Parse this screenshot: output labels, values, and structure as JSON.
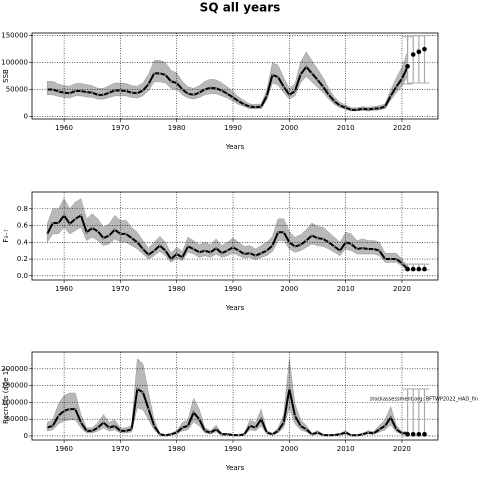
{
  "title": "SQ all years",
  "chart_data": [
    {
      "type": "line",
      "ylabel": "SSB",
      "xlabel": "Years",
      "x": [
        1957,
        1958,
        1959,
        1960,
        1961,
        1962,
        1963,
        1964,
        1965,
        1966,
        1967,
        1968,
        1969,
        1970,
        1971,
        1972,
        1973,
        1974,
        1975,
        1976,
        1977,
        1978,
        1979,
        1980,
        1981,
        1982,
        1983,
        1984,
        1985,
        1986,
        1987,
        1988,
        1989,
        1990,
        1991,
        1992,
        1993,
        1994,
        1995,
        1996,
        1997,
        1998,
        1999,
        2000,
        2001,
        2002,
        2003,
        2004,
        2005,
        2006,
        2007,
        2008,
        2009,
        2010,
        2011,
        2012,
        2013,
        2014,
        2015,
        2016,
        2017,
        2018,
        2019,
        2020,
        2021
      ],
      "values": [
        50000,
        50000,
        46000,
        44000,
        43000,
        47000,
        47000,
        45000,
        44000,
        40000,
        40000,
        44000,
        48000,
        48000,
        47000,
        44000,
        43000,
        48000,
        60000,
        80000,
        80000,
        77000,
        65000,
        62000,
        50000,
        42000,
        40000,
        44000,
        50000,
        53000,
        52000,
        48000,
        42000,
        35000,
        28000,
        22000,
        18000,
        17000,
        18000,
        38000,
        77000,
        73000,
        55000,
        40000,
        47000,
        78000,
        92000,
        80000,
        68000,
        55000,
        40000,
        28000,
        20000,
        16000,
        12000,
        12000,
        14000,
        13000,
        14000,
        15000,
        18000,
        38000,
        55000,
        70000,
        92000
      ],
      "lower": [
        40000,
        40000,
        37000,
        35000,
        34000,
        38000,
        38000,
        36000,
        35000,
        32000,
        32000,
        35000,
        38000,
        38000,
        38000,
        35000,
        34000,
        38000,
        48000,
        64000,
        64000,
        62000,
        52000,
        50000,
        40000,
        34000,
        32000,
        35000,
        40000,
        42000,
        42000,
        38000,
        34000,
        28000,
        22000,
        18000,
        14000,
        14000,
        14000,
        30000,
        62000,
        58000,
        44000,
        32000,
        38000,
        62000,
        74000,
        64000,
        54000,
        44000,
        32000,
        22000,
        16000,
        13000,
        10000,
        10000,
        11000,
        10000,
        11000,
        12000,
        14000,
        30000,
        44000,
        56000,
        74000
      ],
      "upper": [
        65000,
        65000,
        60000,
        57000,
        56000,
        61000,
        61000,
        59000,
        57000,
        52000,
        52000,
        57000,
        62000,
        62000,
        61000,
        57000,
        56000,
        62000,
        78000,
        104000,
        104000,
        100000,
        85000,
        81000,
        65000,
        55000,
        52000,
        57000,
        65000,
        69000,
        68000,
        62000,
        55000,
        46000,
        36000,
        29000,
        23000,
        22000,
        23000,
        49000,
        100000,
        95000,
        72000,
        52000,
        61000,
        101000,
        120000,
        104000,
        88000,
        72000,
        52000,
        36000,
        26000,
        21000,
        16000,
        16000,
        18000,
        17000,
        18000,
        20000,
        23000,
        49000,
        72000,
        91000,
        120000
      ],
      "projection": {
        "x": [
          2021,
          2022,
          2023,
          2024
        ],
        "values": [
          93000,
          115000,
          120000,
          125000
        ],
        "low": [
          60000,
          62000,
          62000,
          62000
        ],
        "high": [
          148000,
          150000,
          150000,
          150000
        ]
      },
      "xlim": [
        1954.3,
        2026.4
      ],
      "ylim": [
        -5000,
        155000
      ],
      "xticks": [
        1960,
        1970,
        1980,
        1990,
        2000,
        2010,
        2020
      ],
      "yticks": [
        0,
        50000,
        100000,
        150000
      ],
      "grid": true,
      "line_color": "#000000",
      "band_color": "#b8b8b8"
    },
    {
      "type": "line",
      "ylabel": "F₃₋₇",
      "xlabel": "Years",
      "x": [
        1957,
        1958,
        1959,
        1960,
        1961,
        1962,
        1963,
        1964,
        1965,
        1966,
        1967,
        1968,
        1969,
        1970,
        1971,
        1972,
        1973,
        1974,
        1975,
        1976,
        1977,
        1978,
        1979,
        1980,
        1981,
        1982,
        1983,
        1984,
        1985,
        1986,
        1987,
        1988,
        1989,
        1990,
        1991,
        1992,
        1993,
        1994,
        1995,
        1996,
        1997,
        1998,
        1999,
        2000,
        2001,
        2002,
        2003,
        2004,
        2005,
        2006,
        2007,
        2008,
        2009,
        2010,
        2011,
        2012,
        2013,
        2014,
        2015,
        2016,
        2017,
        2018,
        2019,
        2020,
        2021
      ],
      "values": [
        0.5,
        0.63,
        0.63,
        0.72,
        0.62,
        0.68,
        0.72,
        0.52,
        0.57,
        0.53,
        0.45,
        0.48,
        0.55,
        0.5,
        0.5,
        0.45,
        0.4,
        0.32,
        0.25,
        0.3,
        0.36,
        0.3,
        0.2,
        0.26,
        0.22,
        0.35,
        0.32,
        0.28,
        0.3,
        0.28,
        0.33,
        0.27,
        0.3,
        0.34,
        0.3,
        0.26,
        0.27,
        0.24,
        0.27,
        0.3,
        0.36,
        0.52,
        0.52,
        0.4,
        0.35,
        0.37,
        0.42,
        0.48,
        0.45,
        0.44,
        0.4,
        0.35,
        0.3,
        0.4,
        0.38,
        0.32,
        0.33,
        0.32,
        0.32,
        0.3,
        0.2,
        0.2,
        0.2,
        0.15,
        0.08
      ],
      "lower": [
        0.4,
        0.5,
        0.5,
        0.58,
        0.5,
        0.54,
        0.58,
        0.42,
        0.46,
        0.42,
        0.36,
        0.38,
        0.44,
        0.4,
        0.4,
        0.36,
        0.32,
        0.26,
        0.2,
        0.24,
        0.29,
        0.24,
        0.16,
        0.21,
        0.18,
        0.28,
        0.26,
        0.22,
        0.24,
        0.22,
        0.26,
        0.22,
        0.24,
        0.27,
        0.24,
        0.21,
        0.22,
        0.19,
        0.22,
        0.24,
        0.29,
        0.42,
        0.42,
        0.32,
        0.28,
        0.3,
        0.34,
        0.38,
        0.36,
        0.35,
        0.32,
        0.28,
        0.24,
        0.32,
        0.3,
        0.26,
        0.26,
        0.26,
        0.26,
        0.24,
        0.16,
        0.16,
        0.16,
        0.12,
        0.06
      ],
      "upper": [
        0.62,
        0.8,
        0.8,
        0.92,
        0.8,
        0.88,
        0.92,
        0.68,
        0.74,
        0.68,
        0.58,
        0.62,
        0.72,
        0.66,
        0.66,
        0.58,
        0.52,
        0.42,
        0.33,
        0.4,
        0.47,
        0.4,
        0.27,
        0.34,
        0.29,
        0.46,
        0.42,
        0.37,
        0.4,
        0.37,
        0.44,
        0.36,
        0.4,
        0.45,
        0.4,
        0.35,
        0.36,
        0.32,
        0.36,
        0.4,
        0.47,
        0.68,
        0.68,
        0.53,
        0.46,
        0.49,
        0.55,
        0.63,
        0.59,
        0.58,
        0.52,
        0.46,
        0.4,
        0.52,
        0.5,
        0.42,
        0.44,
        0.42,
        0.42,
        0.4,
        0.27,
        0.27,
        0.27,
        0.2,
        0.11
      ],
      "projection": {
        "x": [
          2021,
          2022,
          2023,
          2024
        ],
        "values": [
          0.08,
          0.08,
          0.08,
          0.08
        ],
        "low": [
          0.07,
          0.07,
          0.07,
          0.07
        ],
        "high": [
          0.14,
          0.14,
          0.14,
          0.14
        ]
      },
      "xlim": [
        1954.3,
        2026.4
      ],
      "ylim": [
        -0.05,
        1.0
      ],
      "xticks": [
        1960,
        1970,
        1980,
        1990,
        2000,
        2010,
        2020
      ],
      "yticks": [
        {
          "value": 0,
          "label": "0.0"
        },
        0.2,
        0.4,
        0.6,
        0.8
      ],
      "grid": true,
      "line_color": "#000000",
      "band_color": "#b8b8b8"
    },
    {
      "type": "line",
      "ylabel": "Recruits (age 1)",
      "xlabel": "Years",
      "annotation": "stockassessment.org: BFTWP2022_HAD_fin",
      "x": [
        1957,
        1958,
        1959,
        1960,
        1961,
        1962,
        1963,
        1964,
        1965,
        1966,
        1967,
        1968,
        1969,
        1970,
        1971,
        1972,
        1973,
        1974,
        1975,
        1976,
        1977,
        1978,
        1979,
        1980,
        1981,
        1982,
        1983,
        1984,
        1985,
        1986,
        1987,
        1988,
        1989,
        1990,
        1991,
        1992,
        1993,
        1994,
        1995,
        1996,
        1997,
        1998,
        1999,
        2000,
        2001,
        2002,
        2003,
        2004,
        2005,
        2006,
        2007,
        2008,
        2009,
        2010,
        2011,
        2012,
        2013,
        2014,
        2015,
        2016,
        2017,
        2018,
        2019,
        2020,
        2021
      ],
      "values": [
        25000,
        30000,
        60000,
        75000,
        80000,
        80000,
        40000,
        15000,
        15000,
        25000,
        40000,
        25000,
        30000,
        15000,
        15000,
        20000,
        140000,
        130000,
        80000,
        30000,
        5000,
        2000,
        5000,
        10000,
        25000,
        30000,
        70000,
        50000,
        15000,
        10000,
        20000,
        5000,
        5000,
        3000,
        2000,
        5000,
        30000,
        25000,
        50000,
        10000,
        5000,
        15000,
        40000,
        140000,
        60000,
        30000,
        20000,
        5000,
        10000,
        3000,
        2000,
        3000,
        5000,
        10000,
        2000,
        2000,
        5000,
        10000,
        8000,
        20000,
        30000,
        55000,
        20000,
        8000,
        8000
      ],
      "lower": [
        15000,
        18000,
        36000,
        45000,
        48000,
        48000,
        24000,
        9000,
        9000,
        15000,
        24000,
        15000,
        18000,
        9000,
        9000,
        12000,
        84000,
        78000,
        48000,
        18000,
        3000,
        1000,
        3000,
        6000,
        15000,
        18000,
        42000,
        30000,
        9000,
        6000,
        12000,
        3000,
        3000,
        2000,
        1000,
        3000,
        18000,
        15000,
        30000,
        6000,
        3000,
        9000,
        24000,
        84000,
        36000,
        18000,
        12000,
        3000,
        6000,
        2000,
        1000,
        2000,
        3000,
        6000,
        1000,
        1000,
        3000,
        6000,
        5000,
        12000,
        18000,
        33000,
        12000,
        5000,
        5000
      ],
      "upper": [
        40000,
        48000,
        96000,
        120000,
        128000,
        128000,
        64000,
        24000,
        24000,
        40000,
        64000,
        40000,
        48000,
        24000,
        24000,
        32000,
        230000,
        215000,
        128000,
        48000,
        8000,
        3000,
        8000,
        16000,
        40000,
        48000,
        112000,
        80000,
        24000,
        16000,
        32000,
        8000,
        8000,
        5000,
        3000,
        8000,
        48000,
        40000,
        80000,
        16000,
        8000,
        24000,
        64000,
        230000,
        96000,
        48000,
        32000,
        8000,
        16000,
        5000,
        3000,
        5000,
        8000,
        16000,
        3000,
        3000,
        8000,
        16000,
        13000,
        32000,
        48000,
        88000,
        32000,
        13000,
        13000
      ],
      "projection": {
        "x": [
          2021,
          2022,
          2023,
          2024
        ],
        "values": [
          5000,
          5000,
          5000,
          5000
        ],
        "low": [
          0,
          0,
          0,
          0
        ],
        "high": [
          140000,
          140000,
          140000,
          140000
        ]
      },
      "xlim": [
        1954.3,
        2026.4
      ],
      "ylim": [
        -12000,
        250000
      ],
      "xticks": [
        1960,
        1970,
        1980,
        1990,
        2000,
        2010,
        2020
      ],
      "yticks": [
        0,
        50000,
        100000,
        150000,
        200000
      ],
      "grid": true,
      "line_color": "#000000",
      "band_color": "#b8b8b8"
    }
  ]
}
